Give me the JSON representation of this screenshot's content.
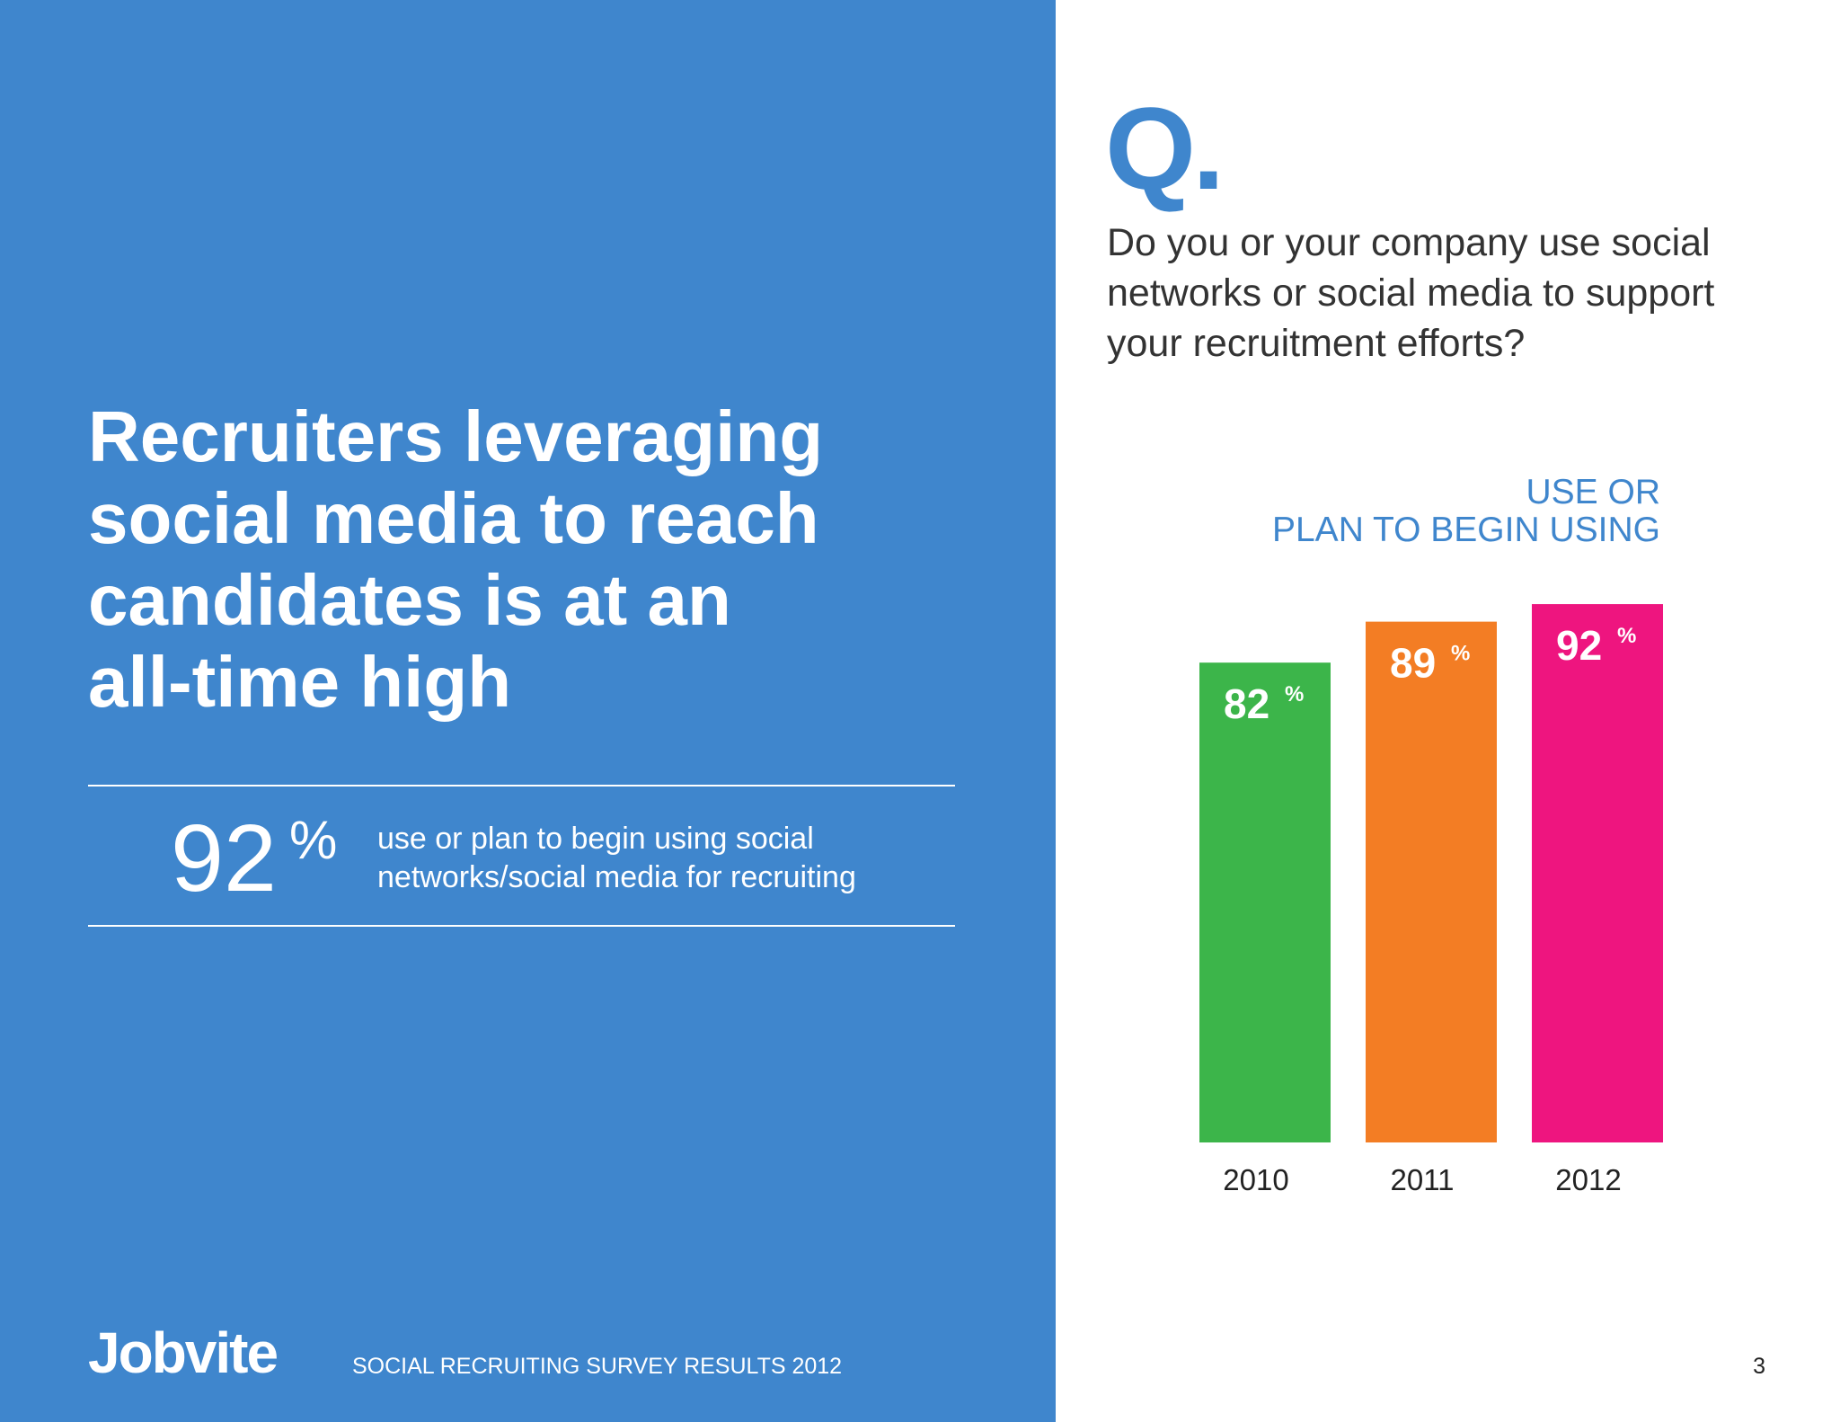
{
  "headline": {
    "line1": "Recruiters leveraging",
    "line2": "social media to reach",
    "line3": "candidates is at an",
    "line4": "all-time high"
  },
  "stat": {
    "value": "92",
    "unit": "%",
    "text_line1": "use or plan to begin using social",
    "text_line2": "networks/social media for recruiting"
  },
  "footer": {
    "logo": "Jobvite",
    "title": "SOCIAL RECRUITING SURVEY RESULTS 2012",
    "page_number": "3"
  },
  "question": {
    "mark": "Q.",
    "line1": "Do you or your company use social",
    "line2": "networks or social media to support",
    "line3": "your recruitment efforts?"
  },
  "colors": {
    "panel_blue": "#3f86cd",
    "bar_2010": "#3cb54a",
    "bar_2011": "#f37d24",
    "bar_2012": "#ee157f"
  },
  "chart_data": {
    "type": "bar",
    "title_line1": "USE OR",
    "title_line2": "PLAN TO BEGIN USING",
    "categories": [
      "2010",
      "2011",
      "2012"
    ],
    "values": [
      82,
      89,
      92
    ],
    "value_labels": [
      "82",
      "89",
      "92"
    ],
    "value_unit": "%",
    "colors": [
      "#3cb54a",
      "#f37d24",
      "#ee157f"
    ],
    "ylim": [
      0,
      100
    ],
    "grid": false,
    "xlabel": "",
    "ylabel": ""
  }
}
